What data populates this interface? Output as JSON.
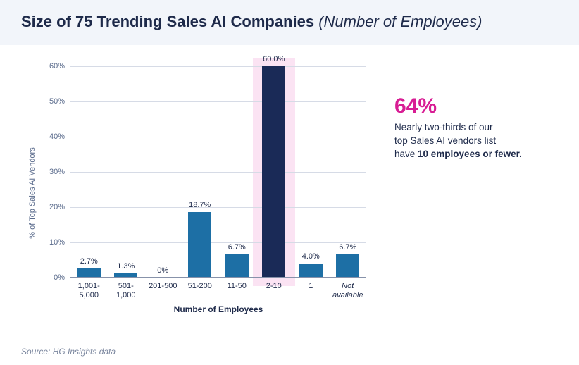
{
  "title": {
    "main": "Size of 75 Trending Sales AI Companies ",
    "subtitle": "(Number of Employees)"
  },
  "chart": {
    "type": "bar",
    "y_label": "% of Top Sales AI Vendors",
    "x_label": "Number of Employees",
    "y_max": 60,
    "y_ticks": [
      0,
      10,
      20,
      30,
      40,
      50,
      60
    ],
    "y_tick_suffix": "%",
    "grid_color": "#d6dbe6",
    "baseline_color": "#8792aa",
    "plot_bg": "#ffffff",
    "highlight_bg": "#fbe3f3",
    "highlight_index": 5,
    "bar_width_ratio": 0.62,
    "categories": [
      {
        "label": "1,001-\n5,000",
        "value": 2.7,
        "color": "#1d6fa5",
        "italic": false
      },
      {
        "label": "501-\n1,000",
        "value": 1.3,
        "color": "#1d6fa5",
        "italic": false
      },
      {
        "label": "201-500",
        "value": 0,
        "color": "#1d6fa5",
        "italic": false
      },
      {
        "label": "51-200",
        "value": 18.7,
        "color": "#1d6fa5",
        "italic": false
      },
      {
        "label": "11-50",
        "value": 6.7,
        "color": "#1d6fa5",
        "italic": false
      },
      {
        "label": "2-10",
        "value": 60.0,
        "color": "#1a2a57",
        "italic": false
      },
      {
        "label": "1",
        "value": 4.0,
        "color": "#1d6fa5",
        "italic": false
      },
      {
        "label": "Not\navailable",
        "value": 6.7,
        "color": "#1d6fa5",
        "italic": true
      }
    ],
    "value_label_suffix": "%",
    "value_label_decimals": 1,
    "label_fontsize": 11,
    "tick_fontsize": 11
  },
  "callout": {
    "headline": "64%",
    "headline_color": "#d81d94",
    "line1": "Nearly two-thirds of our",
    "line2": "top Sales AI vendors list",
    "line3_prefix": "have ",
    "line3_bold": "10 employees or fewer."
  },
  "source": "Source: HG Insights data"
}
